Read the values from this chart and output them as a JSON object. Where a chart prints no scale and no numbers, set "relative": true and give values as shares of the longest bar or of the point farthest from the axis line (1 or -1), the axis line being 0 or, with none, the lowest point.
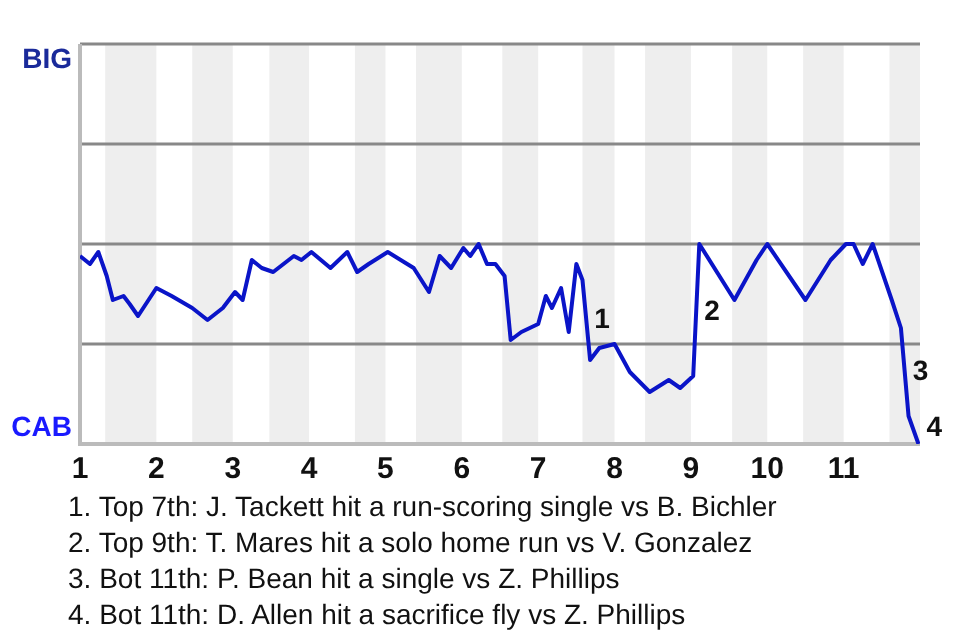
{
  "chart_data": {
    "type": "line",
    "relative": true,
    "x": [
      1,
      1.13,
      1.24,
      1.35,
      1.43,
      1.57,
      1.65,
      1.76,
      2,
      2.2,
      2.47,
      2.67,
      2.87,
      3.03,
      3.13,
      3.25,
      3.38,
      3.53,
      3.8,
      3.9,
      4.03,
      4.28,
      4.5,
      4.63,
      4.78,
      5.03,
      5.37,
      5.57,
      5.71,
      5.86,
      6.02,
      6.11,
      6.22,
      6.33,
      6.44,
      6.56,
      6.64,
      6.78,
      7,
      7.1,
      7.18,
      7.3,
      7.4,
      7.5,
      7.58,
      7.68,
      7.8,
      8,
      8.2,
      8.46,
      8.71,
      8.86,
      9.03,
      9.11,
      9.57,
      9.86,
      10,
      10.5,
      10.83,
      11.03,
      11.13,
      11.25,
      11.38,
      11.63,
      11.75,
      11.85,
      11.98
    ],
    "series": [
      {
        "color": "#0a14c8",
        "values": [
          0.94,
          0.9,
          0.96,
          0.84,
          0.72,
          0.74,
          0.7,
          0.64,
          0.78,
          0.74,
          0.68,
          0.62,
          0.68,
          0.76,
          0.72,
          0.92,
          0.88,
          0.86,
          0.94,
          0.92,
          0.96,
          0.88,
          0.96,
          0.86,
          0.9,
          0.96,
          0.88,
          0.76,
          0.94,
          0.88,
          0.98,
          0.94,
          1,
          0.9,
          0.9,
          0.84,
          0.52,
          0.56,
          0.6,
          0.74,
          0.68,
          0.78,
          0.56,
          0.9,
          0.82,
          0.42,
          0.48,
          0.5,
          0.36,
          0.26,
          0.32,
          0.28,
          0.34,
          1,
          0.72,
          0.92,
          1,
          0.72,
          0.92,
          1,
          1,
          0.9,
          1,
          0.72,
          0.58,
          0.14,
          0
        ]
      }
    ],
    "xlim": [
      1,
      12
    ],
    "xticks": [
      1,
      2,
      3,
      4,
      5,
      6,
      7,
      8,
      9,
      10,
      11
    ],
    "ref_lines": [
      {
        "axis": "y",
        "value": 0.5,
        "color": "#888888"
      },
      {
        "axis": "y",
        "value": 1,
        "color": "#888888"
      },
      {
        "axis": "y",
        "value": 1.5,
        "color": "#888888"
      },
      {
        "axis": "y",
        "value": 2,
        "color": "#888888"
      }
    ],
    "legend": false,
    "marker": "none",
    "line_style": "solid",
    "bands": [
      {
        "axis": "x",
        "from": 1.33,
        "to": 2,
        "color": "#eeeeee"
      },
      {
        "axis": "x",
        "from": 2.47,
        "to": 3,
        "color": "#eeeeee"
      },
      {
        "axis": "x",
        "from": 3.48,
        "to": 4,
        "color": "#eeeeee"
      },
      {
        "axis": "x",
        "from": 4.6,
        "to": 5,
        "color": "#eeeeee"
      },
      {
        "axis": "x",
        "from": 5.4,
        "to": 6,
        "color": "#eeeeee"
      },
      {
        "axis": "x",
        "from": 6.53,
        "to": 7,
        "color": "#eeeeee"
      },
      {
        "axis": "x",
        "from": 7.58,
        "to": 8,
        "color": "#eeeeee"
      },
      {
        "axis": "x",
        "from": 8.4,
        "to": 9,
        "color": "#eeeeee"
      },
      {
        "axis": "x",
        "from": 9.54,
        "to": 10,
        "color": "#eeeeee"
      },
      {
        "axis": "x",
        "from": 10.47,
        "to": 11,
        "color": "#eeeeee"
      },
      {
        "axis": "x",
        "from": 11.6,
        "to": 12,
        "color": "#eeeeee"
      }
    ],
    "annotations": [
      "BIG",
      "CAB",
      {
        "text": "1",
        "x": 7.63,
        "y": 0.62
      },
      {
        "text": "2",
        "x": 9.07,
        "y": 0.66
      },
      {
        "text": "3",
        "x": 11.8,
        "y": 0.36
      },
      {
        "text": "4",
        "x": 11.98,
        "y": 0
      },
      "1. Top 7th: J. Tackett hit a run-scoring single vs B. Bichler",
      "2. Top 9th: T. Mares hit a solo home run vs V. Gonzalez",
      "3. Bot 11th: P. Bean hit a single vs Z. Phillips",
      "4. Bot 11th: D. Allen hit a sacrifice fly vs Z. Phillips"
    ]
  }
}
